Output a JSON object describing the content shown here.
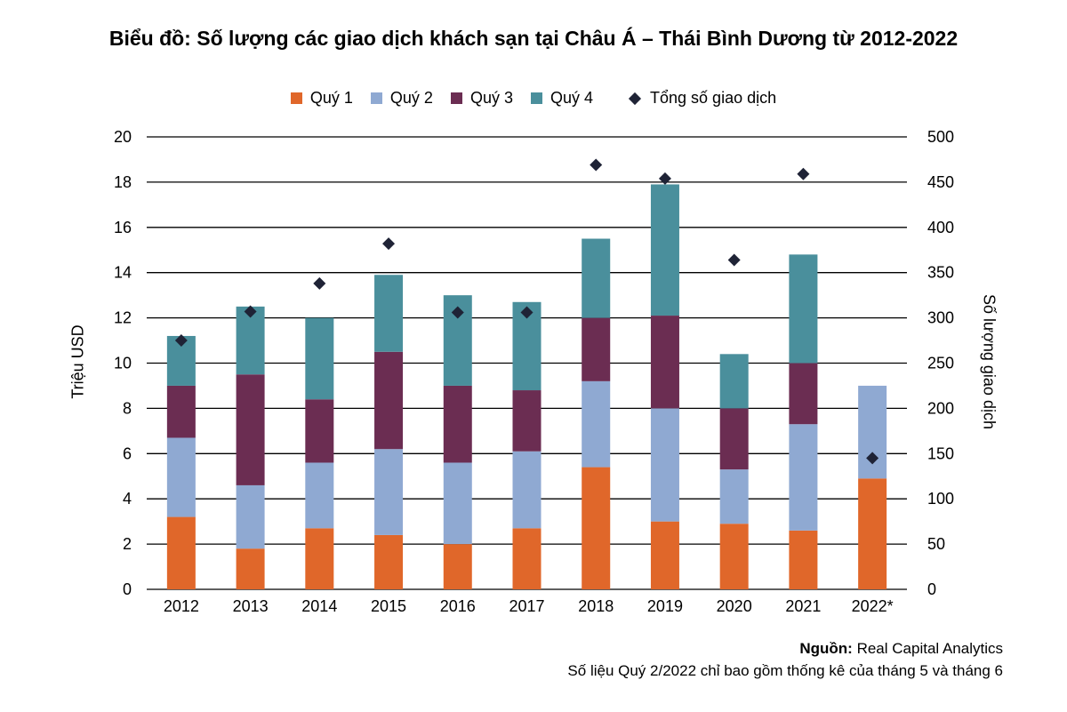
{
  "title": "Biểu đồ: Số lượng các giao dịch khách sạn tại Châu Á – Thái Bình Dương từ 2012-2022",
  "source_label": "Nguồn:",
  "source_text": "Real Capital Analytics",
  "footnote": "Số liệu Quý 2/2022 chỉ bao gồm thống kê của tháng 5 và tháng 6",
  "colors": {
    "q1": "#e0672a",
    "q2": "#8fa9d2",
    "q3": "#6b2d52",
    "q4": "#4a8f9c",
    "total": "#1f2336",
    "grid": "#000000"
  },
  "legend": {
    "q1": "Quý 1",
    "q2": "Quý 2",
    "q3": "Quý 3",
    "q4": "Quý 4",
    "total": "Tổng số giao dịch"
  },
  "chart_data": {
    "type": "bar",
    "stacked": true,
    "categories": [
      "2012",
      "2013",
      "2014",
      "2015",
      "2016",
      "2017",
      "2018",
      "2019",
      "2020",
      "2021",
      "2022*"
    ],
    "series": [
      {
        "name": "Quý 1",
        "axis": "left",
        "values": [
          3.2,
          1.8,
          2.7,
          2.4,
          2.0,
          2.7,
          5.4,
          3.0,
          2.9,
          2.6,
          4.9
        ]
      },
      {
        "name": "Quý 2",
        "axis": "left",
        "values": [
          3.5,
          2.8,
          2.9,
          3.8,
          3.6,
          3.4,
          3.8,
          5.0,
          2.4,
          4.7,
          4.1
        ]
      },
      {
        "name": "Quý 3",
        "axis": "left",
        "values": [
          2.3,
          4.9,
          2.8,
          4.3,
          3.4,
          2.7,
          2.8,
          4.1,
          2.7,
          2.7,
          0
        ]
      },
      {
        "name": "Quý 4",
        "axis": "left",
        "values": [
          2.2,
          3.0,
          3.6,
          3.4,
          4.0,
          3.9,
          3.5,
          5.8,
          2.4,
          4.8,
          0
        ]
      },
      {
        "name": "Tổng số giao dịch",
        "axis": "right",
        "marker": "diamond",
        "values": [
          275,
          307,
          338,
          382,
          306,
          306,
          469,
          454,
          364,
          459,
          145
        ]
      }
    ],
    "ylabel": "Triệu USD",
    "ylabel_right": "Số lượng giao dịch",
    "ylim": [
      0,
      20
    ],
    "yticks": [
      "0",
      "2",
      "4",
      "6",
      "8",
      "10",
      "12",
      "14",
      "16",
      "18",
      "20"
    ],
    "ylim_right": [
      0,
      500
    ],
    "yticks_right": [
      "0",
      "50",
      "100",
      "150",
      "200",
      "250",
      "300",
      "350",
      "400",
      "450",
      "500"
    ],
    "grid": true,
    "legend_position": "top"
  }
}
